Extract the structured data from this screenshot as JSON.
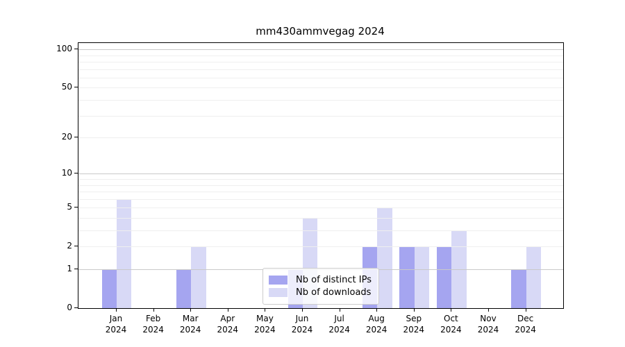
{
  "figure": {
    "title": "mm430ammvegag 2024"
  },
  "colors": {
    "background": "#ffffff",
    "axis": "#000000",
    "grid_major": "#c9c9c9",
    "grid_minor": "#efefef",
    "legend_border": "#cccccc",
    "bar_distinct_ips": "#a5a5f0",
    "bar_downloads": "#d8d9f6"
  },
  "chart_data": {
    "type": "bar",
    "title": "mm430ammvegag 2024",
    "categories": [
      "Jan 2024",
      "Feb 2024",
      "Mar 2024",
      "Apr 2024",
      "May 2024",
      "Jun 2024",
      "Jul 2024",
      "Aug 2024",
      "Sep 2024",
      "Oct 2024",
      "Nov 2024",
      "Dec 2024"
    ],
    "series": [
      {
        "name": "Nb of distinct IPs",
        "color": "#a5a5f0",
        "values": [
          1,
          0,
          1,
          0,
          0,
          1,
          0,
          2,
          2,
          2,
          0,
          1
        ]
      },
      {
        "name": "Nb of downloads",
        "color": "#d8d9f6",
        "values": [
          6,
          0,
          2,
          0,
          0,
          4,
          0,
          5,
          2,
          3,
          0,
          2
        ]
      }
    ],
    "yscale": "log10(1+y)",
    "ylim": [
      0,
      112
    ],
    "y_tick_labels": [
      0,
      1,
      2,
      5,
      10,
      20,
      50,
      100
    ],
    "y_gridlines_major": [
      1,
      10,
      100
    ],
    "y_gridlines_minor": [
      2,
      3,
      4,
      5,
      6,
      7,
      8,
      9,
      20,
      30,
      40,
      50,
      60,
      70,
      80,
      90
    ],
    "grid": true,
    "legend_position": "lower center"
  }
}
